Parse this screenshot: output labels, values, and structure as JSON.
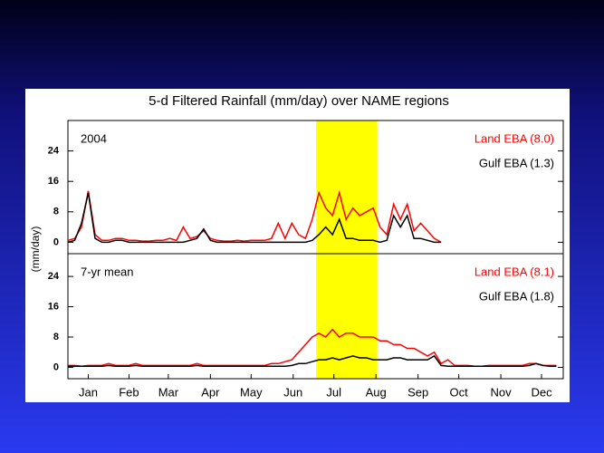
{
  "chart_data": [
    {
      "type": "line",
      "title": "5-d Filtered Rainfall (mm/day) over NAME regions",
      "panel_label": "2004",
      "ylabel": "(mm/day)",
      "highlight": [
        183,
        228
      ],
      "x": [
        0,
        5,
        10,
        15,
        20,
        25,
        30,
        35,
        40,
        45,
        50,
        55,
        60,
        65,
        70,
        75,
        80,
        85,
        90,
        95,
        100,
        105,
        110,
        115,
        120,
        125,
        130,
        135,
        140,
        145,
        150,
        155,
        160,
        165,
        170,
        175,
        180,
        185,
        190,
        195,
        200,
        205,
        210,
        215,
        220,
        225,
        230,
        235,
        240,
        245,
        250,
        255,
        260,
        265,
        270,
        275
      ],
      "xlim": [
        0,
        365
      ],
      "ylim": [
        -3,
        32
      ],
      "yticks": [
        0,
        8,
        16,
        24
      ],
      "series": [
        {
          "name": "Land EBA (8.0)",
          "color": "#ff0000",
          "values": [
            0.5,
            1,
            4,
            13.5,
            2,
            0.5,
            0.5,
            1,
            1,
            0.5,
            0.5,
            0.3,
            0.3,
            0.5,
            0.5,
            1,
            0.5,
            4,
            1,
            1.5,
            3,
            1,
            0.5,
            0.3,
            0.3,
            0.5,
            0.3,
            0.5,
            0.5,
            0.5,
            1,
            5,
            1,
            5,
            2,
            1,
            6,
            13,
            9,
            7,
            13,
            6,
            9,
            7,
            8,
            9,
            4,
            2,
            10,
            6,
            10,
            3,
            5,
            3,
            1,
            0
          ]
        },
        {
          "name": "Gulf EBA (1.3)",
          "color": "#000000",
          "values": [
            0,
            0.5,
            5,
            13,
            1,
            0,
            0,
            0.5,
            0.5,
            0,
            0,
            0,
            0,
            0,
            0,
            0,
            0,
            0,
            0.5,
            1,
            3.5,
            0.5,
            0,
            0,
            0,
            0,
            0,
            0,
            0,
            0,
            0,
            0,
            0,
            0,
            0,
            0,
            0.5,
            2,
            4,
            2,
            6,
            1,
            1,
            0.5,
            0.5,
            0.5,
            0,
            0.5,
            7,
            4,
            7,
            1,
            1,
            0.5,
            0,
            0
          ]
        }
      ]
    },
    {
      "type": "line",
      "panel_label": "7-yr mean",
      "highlight": [
        183,
        228
      ],
      "x": [
        0,
        5,
        10,
        15,
        20,
        25,
        30,
        35,
        40,
        45,
        50,
        55,
        60,
        65,
        70,
        75,
        80,
        85,
        90,
        95,
        100,
        105,
        110,
        115,
        120,
        125,
        130,
        135,
        140,
        145,
        150,
        155,
        160,
        165,
        170,
        175,
        180,
        185,
        190,
        195,
        200,
        205,
        210,
        215,
        220,
        225,
        230,
        235,
        240,
        245,
        250,
        255,
        260,
        265,
        270,
        275,
        280,
        285,
        290,
        295,
        300,
        305,
        310,
        315,
        320,
        325,
        330,
        335,
        340,
        345,
        350,
        355,
        360
      ],
      "xlim": [
        0,
        365
      ],
      "ylim": [
        -3,
        30
      ],
      "yticks": [
        0,
        8,
        16,
        24
      ],
      "xticks": [
        {
          "value": 15,
          "label": "Jan"
        },
        {
          "value": 45,
          "label": "Feb"
        },
        {
          "value": 74,
          "label": "Mar"
        },
        {
          "value": 105,
          "label": "Apr"
        },
        {
          "value": 135,
          "label": "May"
        },
        {
          "value": 166,
          "label": "Jun"
        },
        {
          "value": 196,
          "label": "Jul"
        },
        {
          "value": 227,
          "label": "Aug"
        },
        {
          "value": 258,
          "label": "Sep"
        },
        {
          "value": 288,
          "label": "Oct"
        },
        {
          "value": 319,
          "label": "Nov"
        },
        {
          "value": 349,
          "label": "Dec"
        }
      ],
      "series": [
        {
          "name": "Land EBA (8.1)",
          "color": "#ff0000",
          "values": [
            0.5,
            0.5,
            0.3,
            0.5,
            0.5,
            0.5,
            1,
            0.5,
            0.5,
            0.5,
            1,
            0.5,
            0.5,
            0.5,
            0.5,
            0.5,
            0.5,
            0.5,
            0.5,
            1,
            0.5,
            0.5,
            0.5,
            0.5,
            0.5,
            0.5,
            0.5,
            0.5,
            0.5,
            0.5,
            1,
            1,
            1.5,
            2,
            4,
            6,
            8,
            9,
            8,
            10,
            8,
            9,
            9,
            8,
            8,
            8,
            7,
            7,
            6,
            6,
            5,
            5,
            4,
            3,
            4,
            1,
            2,
            0.5,
            0.5,
            0.5,
            0.3,
            0.3,
            0.5,
            0.5,
            0.5,
            0.5,
            0.5,
            0.5,
            1,
            1,
            0.5,
            0.5,
            0.5
          ]
        },
        {
          "name": "Gulf EBA (1.8)",
          "color": "#000000",
          "values": [
            0.3,
            0.3,
            0.3,
            0.3,
            0.3,
            0.3,
            0.5,
            0.3,
            0.3,
            0.3,
            0.5,
            0.3,
            0.3,
            0.3,
            0.3,
            0.3,
            0.3,
            0.3,
            0.3,
            0.5,
            0.3,
            0.3,
            0.3,
            0.3,
            0.3,
            0.3,
            0.3,
            0.3,
            0.3,
            0.3,
            0.3,
            0.3,
            0.3,
            0.5,
            1,
            1,
            1.5,
            2,
            2,
            2.5,
            2,
            2.5,
            3,
            2.5,
            2.5,
            2,
            2,
            2,
            2.5,
            2.5,
            2,
            2,
            2,
            2,
            3,
            0.5,
            0.3,
            0.3,
            0.3,
            0.3,
            0.3,
            0.3,
            0.3,
            0.3,
            0.3,
            0.3,
            0.3,
            0.3,
            0.5,
            1,
            0.5,
            0.3,
            0.3
          ]
        }
      ]
    }
  ]
}
